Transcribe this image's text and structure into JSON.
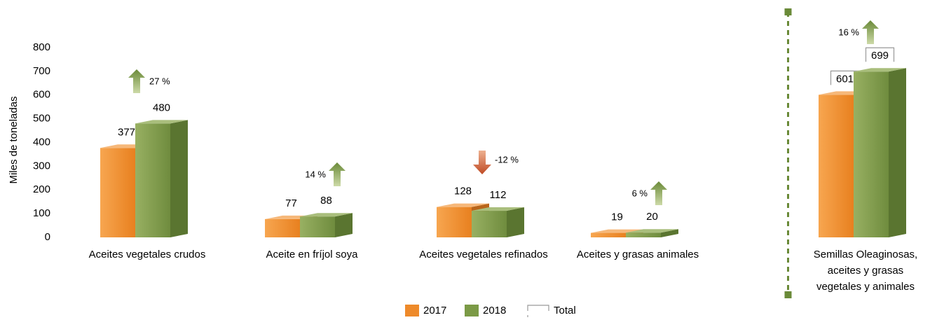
{
  "chart_data": {
    "type": "bar",
    "y_label": "Miles de toneladas",
    "categories": [
      "Aceites vegetales crudos",
      "Aceite en fríjol soya",
      "Aceites vegetales refinados",
      "Aceites y grasas animales",
      "Semillas Oleaginosas, aceites y grasas vegetales y animales"
    ],
    "series": [
      {
        "name": "2017",
        "color": "#ee8a2a",
        "values": [
          377,
          77,
          128,
          19,
          601
        ]
      },
      {
        "name": "2018",
        "color": "#7b9a46",
        "values": [
          480,
          88,
          112,
          20,
          699
        ]
      }
    ],
    "changes": [
      27,
      14,
      -12,
      6,
      16
    ],
    "change_labels": [
      "27 %",
      "14 %",
      "-12 %",
      "6 %",
      "16 %"
    ],
    "total_label": "Total",
    "divider_before": 4,
    "ylim": [
      0,
      800
    ],
    "yticks": [
      0,
      100,
      200,
      300,
      400,
      500,
      600,
      700,
      800
    ],
    "grid": false
  }
}
